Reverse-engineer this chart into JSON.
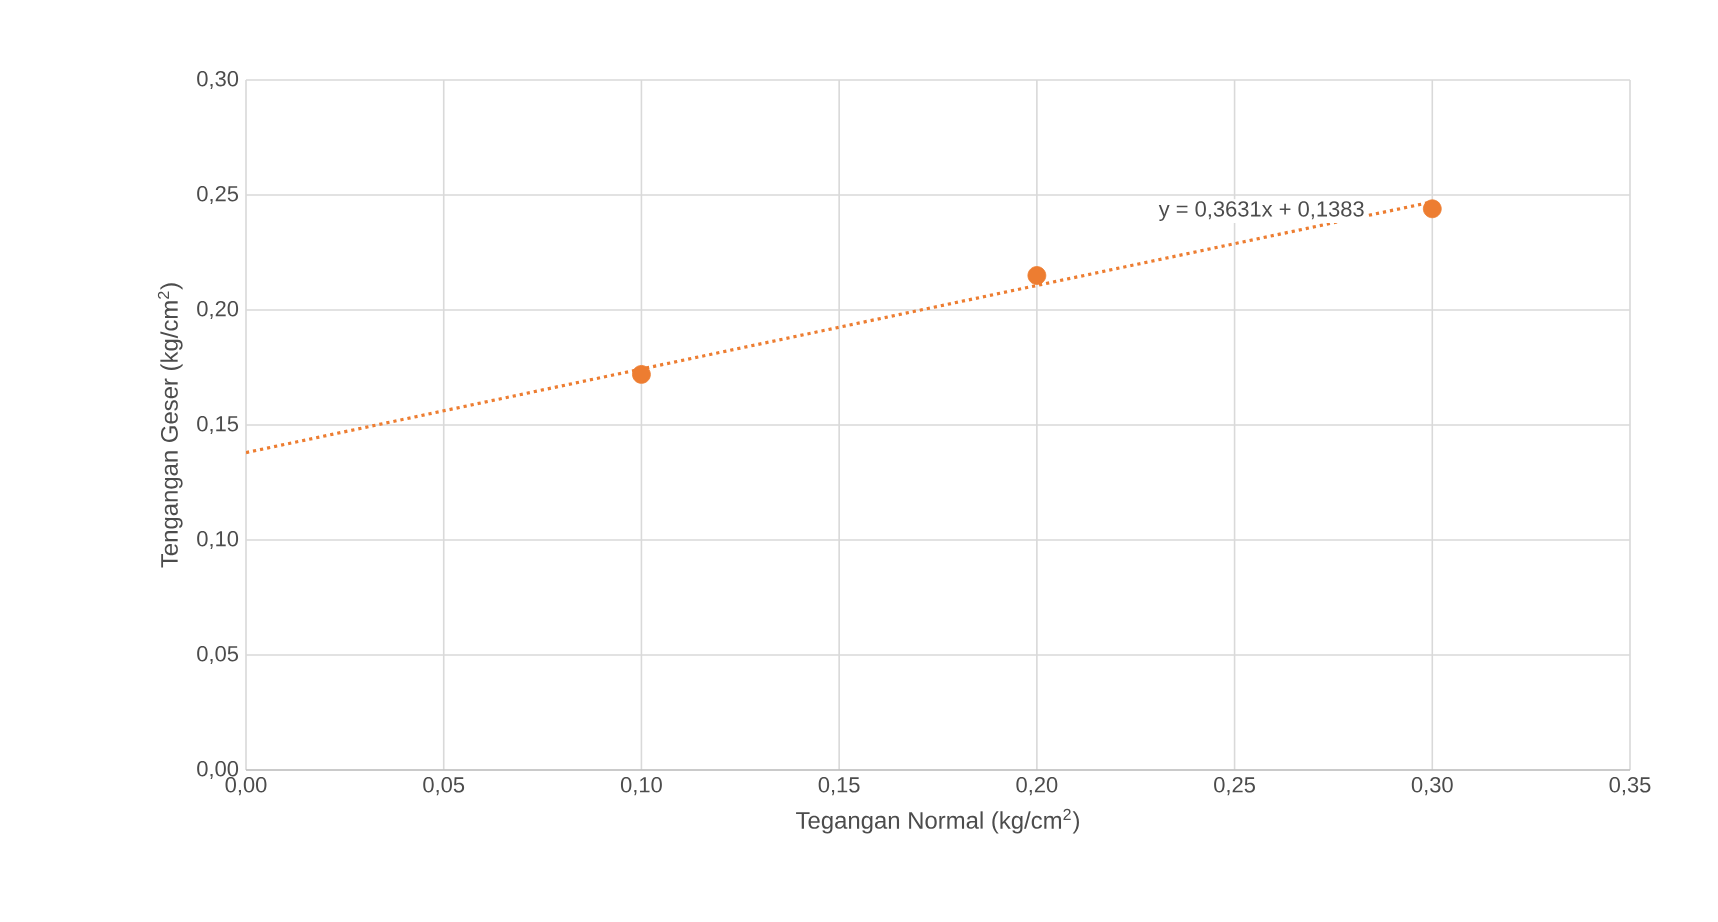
{
  "chart_data": {
    "type": "scatter",
    "xlabel": "Tegangan Normal (kg/cm$^{2}$)",
    "ylabel": "Tengangan Geser (kg/cm$^{2}$)",
    "xlim": [
      0,
      0.35
    ],
    "ylim": [
      0,
      0.3
    ],
    "xticks": [
      {
        "value": 0,
        "label": "0,00"
      },
      {
        "value": 0.05,
        "label": "0,05"
      },
      {
        "value": 0.1,
        "label": "0,10"
      },
      {
        "value": 0.15,
        "label": "0,15"
      },
      {
        "value": 0.2,
        "label": "0,20"
      },
      {
        "value": 0.25,
        "label": "0,25"
      },
      {
        "value": 0.3,
        "label": "0,30"
      },
      {
        "value": 0.35,
        "label": "0,35"
      }
    ],
    "yticks": [
      {
        "value": 0,
        "label": "0,00"
      },
      {
        "value": 0.05,
        "label": "0,05"
      },
      {
        "value": 0.1,
        "label": "0,10"
      },
      {
        "value": 0.15,
        "label": "0,15"
      },
      {
        "value": 0.2,
        "label": "0,20"
      },
      {
        "value": 0.25,
        "label": "0,25"
      },
      {
        "value": 0.3,
        "label": "0,30"
      }
    ],
    "grid": true,
    "series": [
      {
        "type": "line",
        "color": "#ed7d31",
        "line_style": "dotted",
        "marker": "none",
        "x": [
          0,
          0.3
        ],
        "values": [
          0.138,
          0.247
        ]
      },
      {
        "color": "#ed7d31",
        "marker": "circle",
        "x": [
          0.1,
          0.2,
          0.3
        ],
        "values": [
          0.172,
          0.215,
          0.244
        ]
      }
    ],
    "annotations": [
      "y = 0,3631x + 0,1383"
    ]
  }
}
